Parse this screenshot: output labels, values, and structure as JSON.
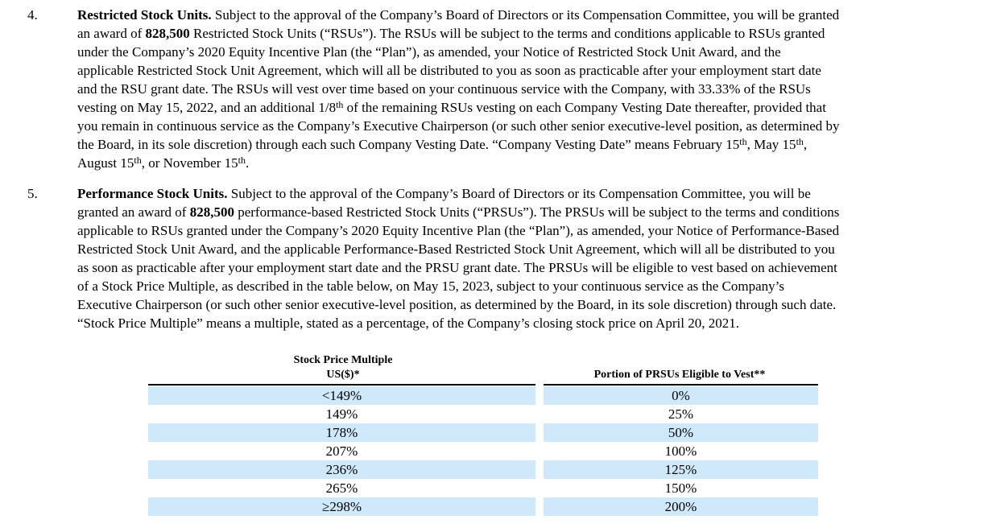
{
  "sections": [
    {
      "number": "4.",
      "lines": [
        [
          {
            "b": "Restricted Stock Units."
          },
          {
            "t": " Subject to the approval of the Company’s Board of Directors or its Compensation Committee, you will be granted"
          }
        ],
        [
          {
            "t": "an award of "
          },
          {
            "b": "828,500"
          },
          {
            "t": " Restricted Stock Units (“RSUs”). The RSUs will be subject to the terms and conditions applicable to RSUs granted"
          }
        ],
        [
          {
            "t": "under the Company’s 2020 Equity Incentive Plan (the “Plan”), as amended, your Notice of Restricted Stock Unit Award, and the"
          }
        ],
        [
          {
            "t": "applicable Restricted Stock Unit Agreement, which will all be distributed to you as soon as practicable after your employment start date"
          }
        ],
        [
          {
            "t": "and the RSU grant date. The RSUs will vest over time based on your continuous service with the Company, with 33.33% of the RSUs"
          }
        ],
        [
          {
            "t": "vesting on May 15, 2022, and an additional 1/8"
          },
          {
            "s": "th"
          },
          {
            "t": " of the remaining RSUs vesting on each Company Vesting Date thereafter, provided that"
          }
        ],
        [
          {
            "t": "you remain in continuous service as the Company’s Executive Chairperson (or such other senior executive-level position, as determined by"
          }
        ],
        [
          {
            "t": "the Board, in its sole discretion) through each such Company Vesting Date. “Company Vesting Date” means February 15"
          },
          {
            "s": "th"
          },
          {
            "t": ", May 15"
          },
          {
            "s": "th"
          },
          {
            "t": ","
          }
        ],
        [
          {
            "t": "August 15"
          },
          {
            "s": "th"
          },
          {
            "t": ", or November 15"
          },
          {
            "s": "th"
          },
          {
            "t": "."
          }
        ]
      ]
    },
    {
      "number": "5.",
      "lines": [
        [
          {
            "b": "Performance Stock Units."
          },
          {
            "t": " Subject to the approval of the Company’s Board of Directors or its Compensation Committee, you will be"
          }
        ],
        [
          {
            "t": "granted an award of "
          },
          {
            "b": "828,500"
          },
          {
            "t": " performance-based Restricted Stock Units (“PRSUs”). The PRSUs will be subject to the terms and conditions"
          }
        ],
        [
          {
            "t": "applicable to RSUs granted under the Company’s 2020 Equity Incentive Plan (the “Plan”), as amended, your Notice of Performance-Based"
          }
        ],
        [
          {
            "t": "Restricted Stock Unit Award, and the applicable Performance-Based Restricted Stock Unit Agreement, which will all be distributed to you"
          }
        ],
        [
          {
            "t": "as soon as practicable after your employment start date and the PRSU grant date. The PRSUs will be eligible to vest based on achievement"
          }
        ],
        [
          {
            "t": "of a Stock Price Multiple, as described in the table below, on May 15, 2023, subject to your continuous service as the Company’s"
          }
        ],
        [
          {
            "t": "Executive Chairperson (or such other senior executive-level position, as determined by the Board, in its sole discretion) through such date."
          }
        ],
        [
          {
            "t": "“Stock Price Multiple” means a multiple, stated as a percentage, of the Company’s closing stock price on April 20, 2021."
          }
        ]
      ]
    }
  ],
  "table": {
    "header_col1_line1": "Stock Price Multiple",
    "header_col1_line2": "US($)*",
    "header_col2": "Portion of PRSUs Eligible to Vest**",
    "rows": [
      {
        "multiple": "<149%",
        "portion": "0%"
      },
      {
        "multiple": "149%",
        "portion": "25%"
      },
      {
        "multiple": "178%",
        "portion": "50%"
      },
      {
        "multiple": "207%",
        "portion": "100%"
      },
      {
        "multiple": "236%",
        "portion": "125%"
      },
      {
        "multiple": "265%",
        "portion": "150%"
      },
      {
        "multiple": "≥298%",
        "portion": "200%"
      }
    ],
    "shade_color": "#cfe9fb"
  }
}
